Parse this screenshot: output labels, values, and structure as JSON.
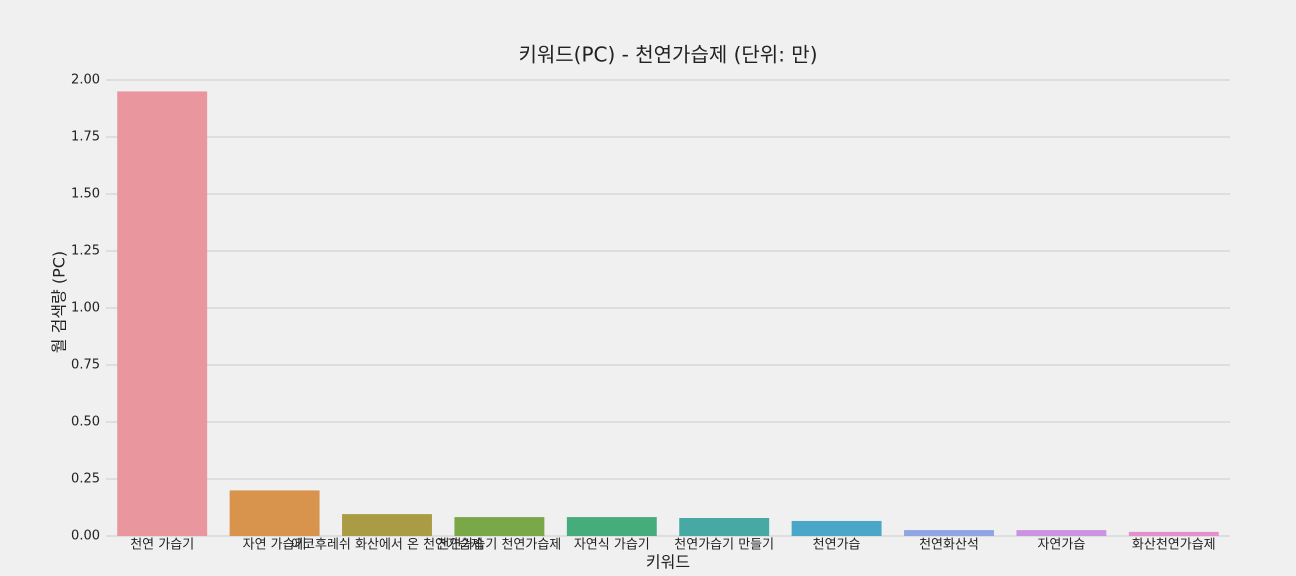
{
  "chart_data": {
    "type": "bar",
    "title": "키워드(PC) - 천연가습제 (단위: 만)",
    "x_label": "키워드",
    "y_label": "월 검색량 (PC)",
    "categories": [
      "천연 가습기",
      "자연 가습기",
      "에코후레쉬 화산에서 온 천연가습제",
      "천연가습기 천연가습제",
      "자연식 가습기",
      "천연가습기 만들기",
      "천연가습",
      "천연화산석",
      "자연가습",
      "화산천연가습제"
    ],
    "values": [
      1.95,
      0.2,
      0.096,
      0.083,
      0.083,
      0.079,
      0.066,
      0.026,
      0.026,
      0.018
    ],
    "colors": [
      "#e9969f",
      "#d8934d",
      "#a99c45",
      "#7aa747",
      "#45ad7b",
      "#46a9a3",
      "#4aa7c8",
      "#8fa5e3",
      "#cd93e3",
      "#e78fcc"
    ],
    "ylim": [
      0,
      2
    ],
    "yticks": [
      {
        "value": 0,
        "label": "0.00"
      },
      {
        "value": 0.25,
        "label": "0.25"
      },
      {
        "value": 0.5,
        "label": "0.50"
      },
      {
        "value": 0.75,
        "label": "0.75"
      },
      {
        "value": 1,
        "label": "1.00"
      },
      {
        "value": 1.25,
        "label": "1.25"
      },
      {
        "value": 1.5,
        "label": "1.50"
      },
      {
        "value": 1.75,
        "label": "1.75"
      },
      {
        "value": 2,
        "label": "2.00"
      }
    ],
    "grid": true
  }
}
